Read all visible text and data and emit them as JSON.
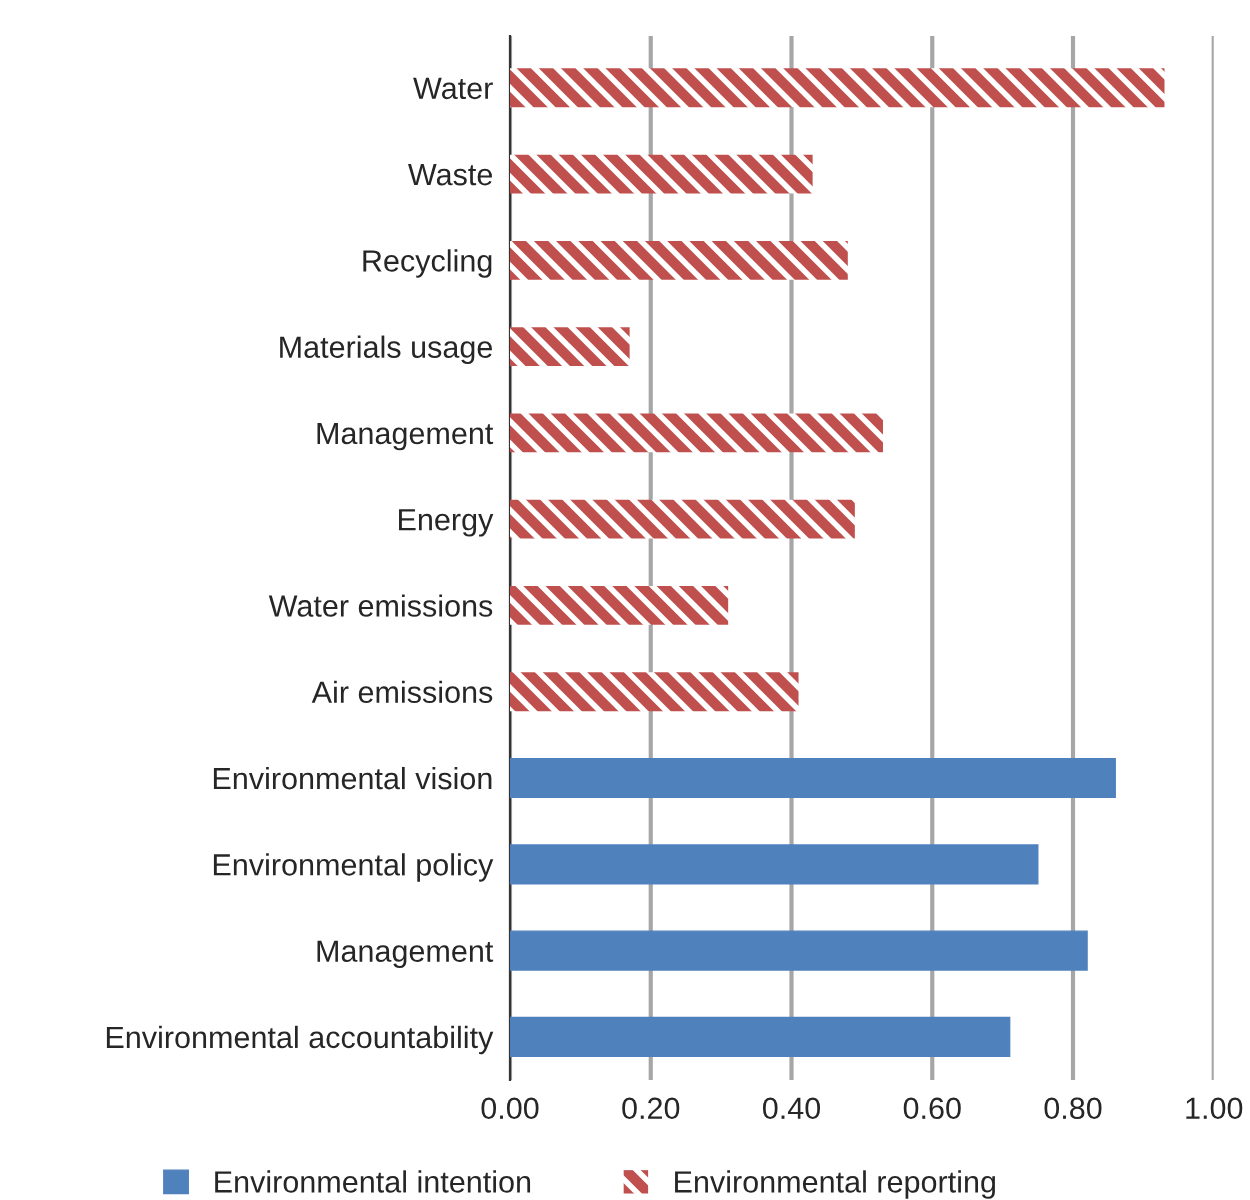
{
  "chart_data": {
    "type": "bar",
    "orientation": "horizontal",
    "categories": [
      "Water",
      "Waste",
      "Recycling",
      "Materials usage",
      "Management",
      "Energy",
      "Water emissions",
      "Air emissions",
      "Environmental vision",
      "Environmental policy",
      "Management",
      "Environmental accountability"
    ],
    "series": [
      {
        "name": "Environmental intention",
        "color": "#4f81bd",
        "values": [
          null,
          null,
          null,
          null,
          null,
          null,
          null,
          null,
          0.86,
          0.75,
          0.82,
          0.71
        ]
      },
      {
        "name": "Environmental reporting",
        "color": "#c0504d",
        "values": [
          0.93,
          0.43,
          0.48,
          0.17,
          0.53,
          0.49,
          0.31,
          0.41,
          null,
          null,
          null,
          null
        ]
      }
    ],
    "xlim": [
      0,
      1
    ],
    "xticks": [
      {
        "value": 0,
        "label": "0.00"
      },
      {
        "value": 0.2,
        "label": "0.20"
      },
      {
        "value": 0.4,
        "label": "0.40"
      },
      {
        "value": 0.6,
        "label": "0.60"
      },
      {
        "value": 0.8,
        "label": "0.80"
      },
      {
        "value": 1,
        "label": "1.00"
      }
    ],
    "grid": "x",
    "legend": "bottom"
  }
}
